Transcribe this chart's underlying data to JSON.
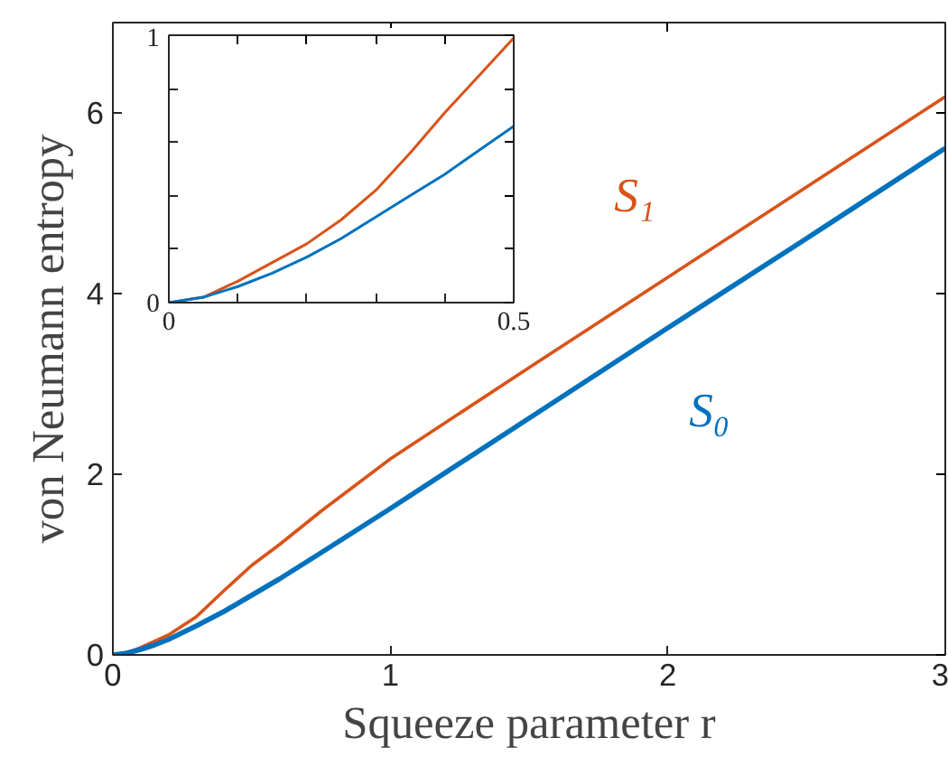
{
  "chart_data": [
    {
      "type": "line",
      "xlabel": "Squeeze parameter r",
      "ylabel": "von Neumann entropy",
      "xlim": [
        0,
        3
      ],
      "ylim": [
        0,
        7
      ],
      "xticks": [
        0,
        1,
        2,
        3
      ],
      "yticks": [
        0,
        2,
        4,
        6
      ],
      "x": [
        0,
        0.05,
        0.1,
        0.15,
        0.2,
        0.3,
        0.4,
        0.5,
        0.6,
        0.75,
        1,
        1.5,
        2,
        2.5,
        3
      ],
      "series": [
        {
          "name": "S₁",
          "color": "#d95319",
          "values": [
            0,
            0.02,
            0.08,
            0.15,
            0.22,
            0.42,
            0.71,
            0.99,
            1.22,
            1.59,
            2.17,
            3.18,
            4.18,
            5.18,
            6.18
          ]
        },
        {
          "name": "S₀",
          "color": "#0072bd",
          "values": [
            0,
            0.02,
            0.06,
            0.11,
            0.17,
            0.32,
            0.48,
            0.66,
            0.84,
            1.13,
            1.62,
            2.62,
            3.62,
            4.61,
            5.61
          ]
        }
      ]
    },
    {
      "type": "line",
      "xlim": [
        0,
        0.5
      ],
      "ylim": [
        0,
        1
      ],
      "xticks": [
        0,
        {
          "value": 0.1,
          "label": null
        },
        {
          "value": 0.2,
          "label": null
        },
        {
          "value": 0.3,
          "label": null
        },
        {
          "value": 0.4,
          "label": null
        },
        {
          "value": 0.5,
          "label": "0.5"
        }
      ],
      "yticks": [
        0,
        {
          "value": 0.2,
          "label": null
        },
        {
          "value": 0.4,
          "label": null
        },
        {
          "value": 0.6,
          "label": null
        },
        {
          "value": 0.8,
          "label": null
        },
        1
      ],
      "x": [
        0,
        0.05,
        0.1,
        0.15,
        0.2,
        0.25,
        0.3,
        0.35,
        0.4,
        0.45,
        0.5
      ],
      "series": [
        {
          "color": "#d95319",
          "values": [
            0,
            0.02,
            0.08,
            0.15,
            0.22,
            0.31,
            0.42,
            0.56,
            0.71,
            0.85,
            0.99
          ]
        },
        {
          "color": "#0072bd",
          "values": [
            0,
            0.02,
            0.06,
            0.11,
            0.17,
            0.24,
            0.32,
            0.4,
            0.48,
            0.57,
            0.66
          ]
        }
      ]
    }
  ]
}
